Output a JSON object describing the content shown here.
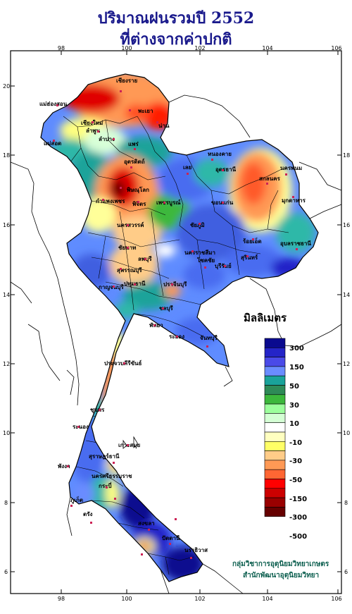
{
  "title": {
    "line1": "ปริมาณฝนรวมปี  2552",
    "line2": "ที่ต่างจากค่าปกติ"
  },
  "axes": {
    "top_ticks": [
      "98",
      "100",
      "102",
      "104",
      "106"
    ],
    "bottom_ticks": [
      "98",
      "100",
      "102",
      "104",
      "106"
    ],
    "left_ticks": [
      "20",
      "18",
      "16",
      "14",
      "12",
      "10",
      "8",
      "6"
    ],
    "right_ticks": [
      "18",
      "16",
      "14",
      "12",
      "10",
      "8",
      "6"
    ]
  },
  "legend": {
    "unit_label": "มิลลิเมตร",
    "labels": [
      "300",
      "150",
      "50",
      "30",
      "10",
      "-10",
      "-30",
      "-50",
      "-150",
      "-300",
      "-500"
    ],
    "colors": [
      "#0a0a8f",
      "#2424c8",
      "#4a4ae8",
      "#6a8cff",
      "#1aa39a",
      "#2e8b57",
      "#3cb83c",
      "#9cff9c",
      "#d4ffd4",
      "#ffffff",
      "#ffffc0",
      "#ffff66",
      "#ffcc88",
      "#ff9955",
      "#ff6633",
      "#ff0000",
      "#cc0000",
      "#990000",
      "#660000"
    ]
  },
  "places": [
    {
      "id": "chiang-rai",
      "label": "เชียงราย"
    },
    {
      "id": "mae-hong-son",
      "label": "แม่ฮ่องสอน"
    },
    {
      "id": "phayao",
      "label": "พะเยา"
    },
    {
      "id": "chiang-mai",
      "label": "เชียงใหม่"
    },
    {
      "id": "lamphun",
      "label": "ลำพูน"
    },
    {
      "id": "nan",
      "label": "น่าน"
    },
    {
      "id": "lampang",
      "label": "ลำปาง"
    },
    {
      "id": "mae-sot",
      "label": "แม่สอด"
    },
    {
      "id": "phrae",
      "label": "แพร่"
    },
    {
      "id": "uttaradit",
      "label": "อุตรดิตถ์"
    },
    {
      "id": "phitsanulok",
      "label": "พิษณุโลก"
    },
    {
      "id": "kamphaeng-phet",
      "label": "กำแพงเพชร"
    },
    {
      "id": "phichit",
      "label": "พิจิตร"
    },
    {
      "id": "nakhon-sawan",
      "label": "นครสวรรค์"
    },
    {
      "id": "nong-khai",
      "label": "หนองคาย"
    },
    {
      "id": "udon-thani",
      "label": "อุดรธานี"
    },
    {
      "id": "loei",
      "label": "เลย"
    },
    {
      "id": "nakhon-phanom",
      "label": "นครพนม"
    },
    {
      "id": "sakon-nakhon",
      "label": "สกลนคร"
    },
    {
      "id": "mukdahan",
      "label": "มุกดาหาร"
    },
    {
      "id": "khon-kaen",
      "label": "ขอนแก่น"
    },
    {
      "id": "phetchabun",
      "label": "เพชรบูรณ์"
    },
    {
      "id": "chaiyaphum",
      "label": "ชัยภูมิ"
    },
    {
      "id": "roi-et",
      "label": "ร้อยเอ็ด"
    },
    {
      "id": "ubon",
      "label": "อุบลราชธานี"
    },
    {
      "id": "surin",
      "label": "สุรินทร์"
    },
    {
      "id": "nakhon-ratchasima",
      "label": "นครราชสีมา"
    },
    {
      "id": "chok-chai",
      "label": "โชคชัย"
    },
    {
      "id": "buriram",
      "label": "บุรีรัมย์"
    },
    {
      "id": "lop-buri",
      "label": "ลพบุรี"
    },
    {
      "id": "chai-nat",
      "label": "ชัยนาท"
    },
    {
      "id": "suphan-buri",
      "label": "สุพรรณบุรี"
    },
    {
      "id": "kanchanaburi",
      "label": "กาญจนบุรี"
    },
    {
      "id": "pathum-thani",
      "label": "ปทุมธานี"
    },
    {
      "id": "prachin-buri",
      "label": "ปราจีนบุรี"
    },
    {
      "id": "chon-buri",
      "label": "ชลบุรี"
    },
    {
      "id": "phatthaya",
      "label": "พัทยา"
    },
    {
      "id": "rayong",
      "label": "ระยอง"
    },
    {
      "id": "chanthaburi",
      "label": "จันทบุรี"
    },
    {
      "id": "prachuap",
      "label": "ประจวบคีรีขันธ์"
    },
    {
      "id": "chumphon",
      "label": "ชุมพร"
    },
    {
      "id": "ranong",
      "label": "ระนอง"
    },
    {
      "id": "ko-samui",
      "label": "เกาะสมุย"
    },
    {
      "id": "surat-thani",
      "label": "สุราษฎร์ธานี"
    },
    {
      "id": "phang-nga",
      "label": "พังงา"
    },
    {
      "id": "nakhon-si-thammarat",
      "label": "นครศรีธรรมราช"
    },
    {
      "id": "krabi",
      "label": "กระบี่"
    },
    {
      "id": "phuket",
      "label": "ภูเก็ต"
    },
    {
      "id": "trang",
      "label": "ตรัง"
    },
    {
      "id": "songkhla",
      "label": "สงขลา"
    },
    {
      "id": "pattani",
      "label": "ปัตตานี"
    },
    {
      "id": "narathiwat",
      "label": "นราธิวาส"
    }
  ],
  "credit": {
    "line1": "กลุ่มวิชาการอุตุนิยมวิทยาเกษตร",
    "line2": "สำนักพัฒนาอุตุนิยมวิทยา"
  }
}
